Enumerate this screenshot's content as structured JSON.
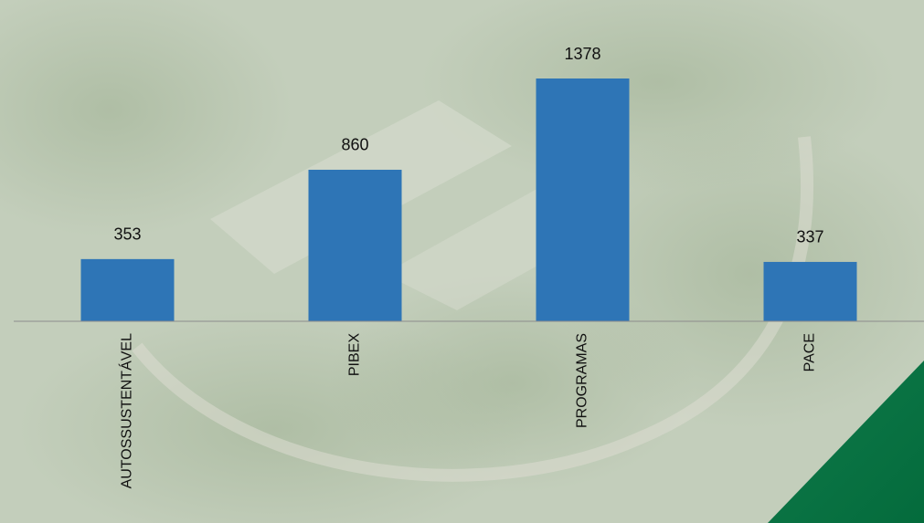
{
  "chart_data": {
    "type": "bar",
    "categories": [
      "AUTOSSUSTENTÁVEL",
      "PIBEX",
      "PROGRAMAS",
      "PACE"
    ],
    "values": [
      353,
      860,
      1378,
      337
    ],
    "color": "#2e75b6"
  }
}
